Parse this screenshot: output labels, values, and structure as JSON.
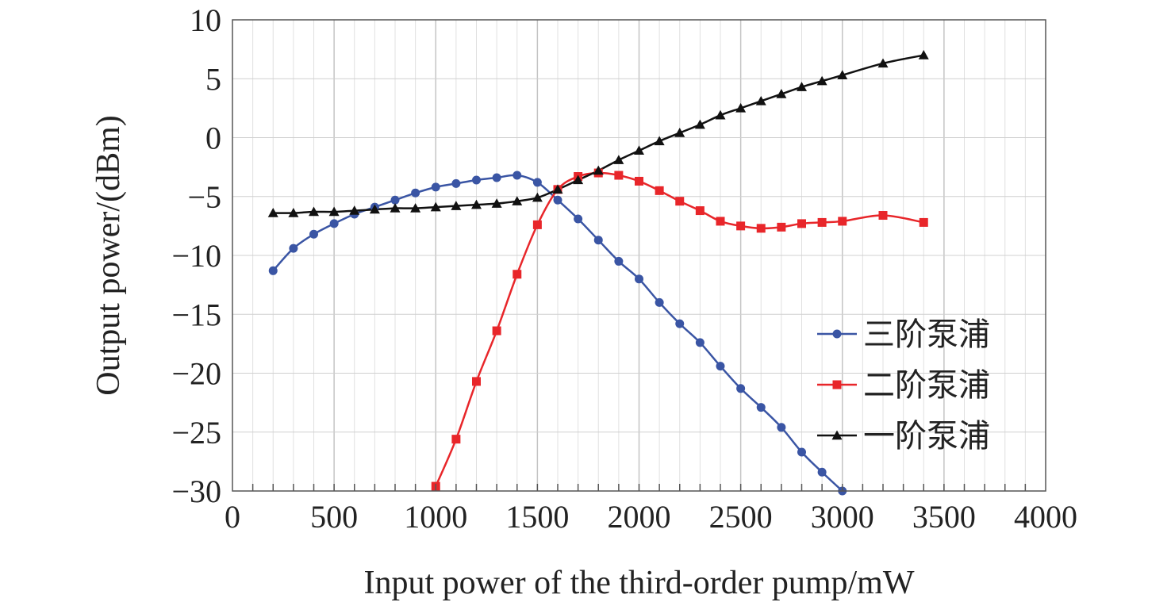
{
  "chart_data": {
    "type": "line",
    "xlabel": "Input power of the third-order pump/mW",
    "ylabel": "Output power/(dBm)",
    "xlim": [
      0,
      4000
    ],
    "ylim": [
      -30,
      10
    ],
    "xticks": [
      0,
      500,
      1000,
      1500,
      2000,
      2500,
      3000,
      3500,
      4000
    ],
    "yticks": [
      10,
      5,
      0,
      -5,
      -10,
      -15,
      -20,
      -25,
      -30
    ],
    "ytick_labels": [
      "10",
      "5",
      "0",
      "−5",
      "−10",
      "−15",
      "−20",
      "−25",
      "−30"
    ],
    "grid": true,
    "legend_position": "bottom-right",
    "series": [
      {
        "name": "三阶泵浦",
        "color": "#3a55a4",
        "marker": "circle",
        "x": [
          200,
          300,
          400,
          500,
          600,
          700,
          800,
          900,
          1000,
          1100,
          1200,
          1300,
          1400,
          1500,
          1600,
          1700,
          1800,
          1900,
          2000,
          2100,
          2200,
          2300,
          2400,
          2500,
          2600,
          2700,
          2800,
          2900,
          3000
        ],
        "y": [
          -11.3,
          -9.4,
          -8.2,
          -7.3,
          -6.5,
          -5.9,
          -5.3,
          -4.7,
          -4.2,
          -3.9,
          -3.6,
          -3.4,
          -3.2,
          -3.8,
          -5.3,
          -6.9,
          -8.7,
          -10.5,
          -12.0,
          -14.0,
          -15.8,
          -17.4,
          -19.4,
          -21.3,
          -22.9,
          -24.6,
          -26.7,
          -28.4,
          -30.0
        ]
      },
      {
        "name": "二阶泵浦",
        "color": "#e8262a",
        "marker": "square",
        "x": [
          1000,
          1100,
          1200,
          1300,
          1400,
          1500,
          1600,
          1700,
          1800,
          1900,
          2000,
          2100,
          2200,
          2300,
          2400,
          2500,
          2600,
          2700,
          2800,
          2900,
          3000,
          3200,
          3400
        ],
        "y": [
          -29.6,
          -25.6,
          -20.7,
          -16.4,
          -11.6,
          -7.4,
          -4.4,
          -3.3,
          -3.0,
          -3.2,
          -3.7,
          -4.5,
          -5.4,
          -6.2,
          -7.1,
          -7.5,
          -7.7,
          -7.6,
          -7.3,
          -7.2,
          -7.1,
          -6.6,
          -7.2
        ]
      },
      {
        "name": "一阶泵浦",
        "color": "#111111",
        "marker": "triangle",
        "x": [
          200,
          300,
          400,
          500,
          600,
          700,
          800,
          900,
          1000,
          1100,
          1200,
          1300,
          1400,
          1500,
          1600,
          1700,
          1800,
          1900,
          2000,
          2100,
          2200,
          2300,
          2400,
          2500,
          2600,
          2700,
          2800,
          2900,
          3000,
          3200,
          3400
        ],
        "y": [
          -6.4,
          -6.4,
          -6.3,
          -6.3,
          -6.2,
          -6.1,
          -6.0,
          -6.0,
          -5.9,
          -5.8,
          -5.7,
          -5.6,
          -5.4,
          -5.1,
          -4.4,
          -3.6,
          -2.8,
          -1.9,
          -1.1,
          -0.3,
          0.4,
          1.1,
          1.9,
          2.5,
          3.1,
          3.7,
          4.3,
          4.8,
          5.3,
          6.3,
          7.0
        ]
      }
    ]
  }
}
